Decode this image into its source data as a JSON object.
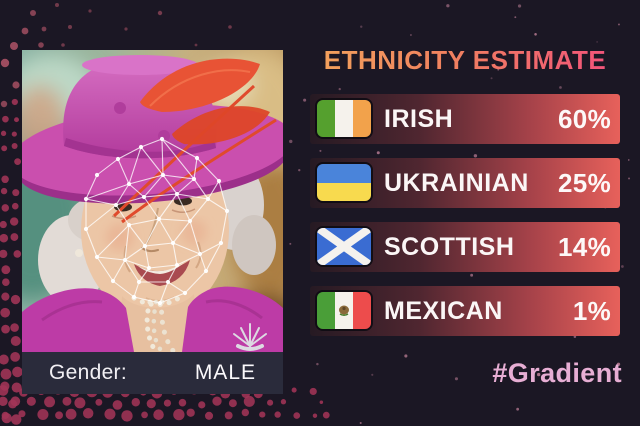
{
  "header": {
    "title": "ETHNICITY ESTIMATE"
  },
  "photo_panel": {
    "subject": "elderly woman wearing a magenta hat with red feather, face-detection mesh overlay",
    "gender_label": "Gender:",
    "gender_value": "MALE"
  },
  "results": [
    {
      "flag": "ireland",
      "label": "IRISH",
      "percent": "60%"
    },
    {
      "flag": "ukraine",
      "label": "UKRAINIAN",
      "percent": "25%"
    },
    {
      "flag": "scotland",
      "label": "SCOTTISH",
      "percent": "14%"
    },
    {
      "flag": "mexico",
      "label": "MEXICAN",
      "percent": "1%"
    }
  ],
  "footer": {
    "watermark": "#Gradient"
  },
  "colors": {
    "background": "#1b1724",
    "title_gradient_start": "#f2a35c",
    "title_gradient_end": "#f2517c",
    "bar_gradient_start": "#271a23",
    "bar_gradient_end": "#e7615b",
    "gender_bar": "#2a2b3b",
    "watermark_pink": "#e7aed4",
    "halftone_dot": "#a03457"
  }
}
